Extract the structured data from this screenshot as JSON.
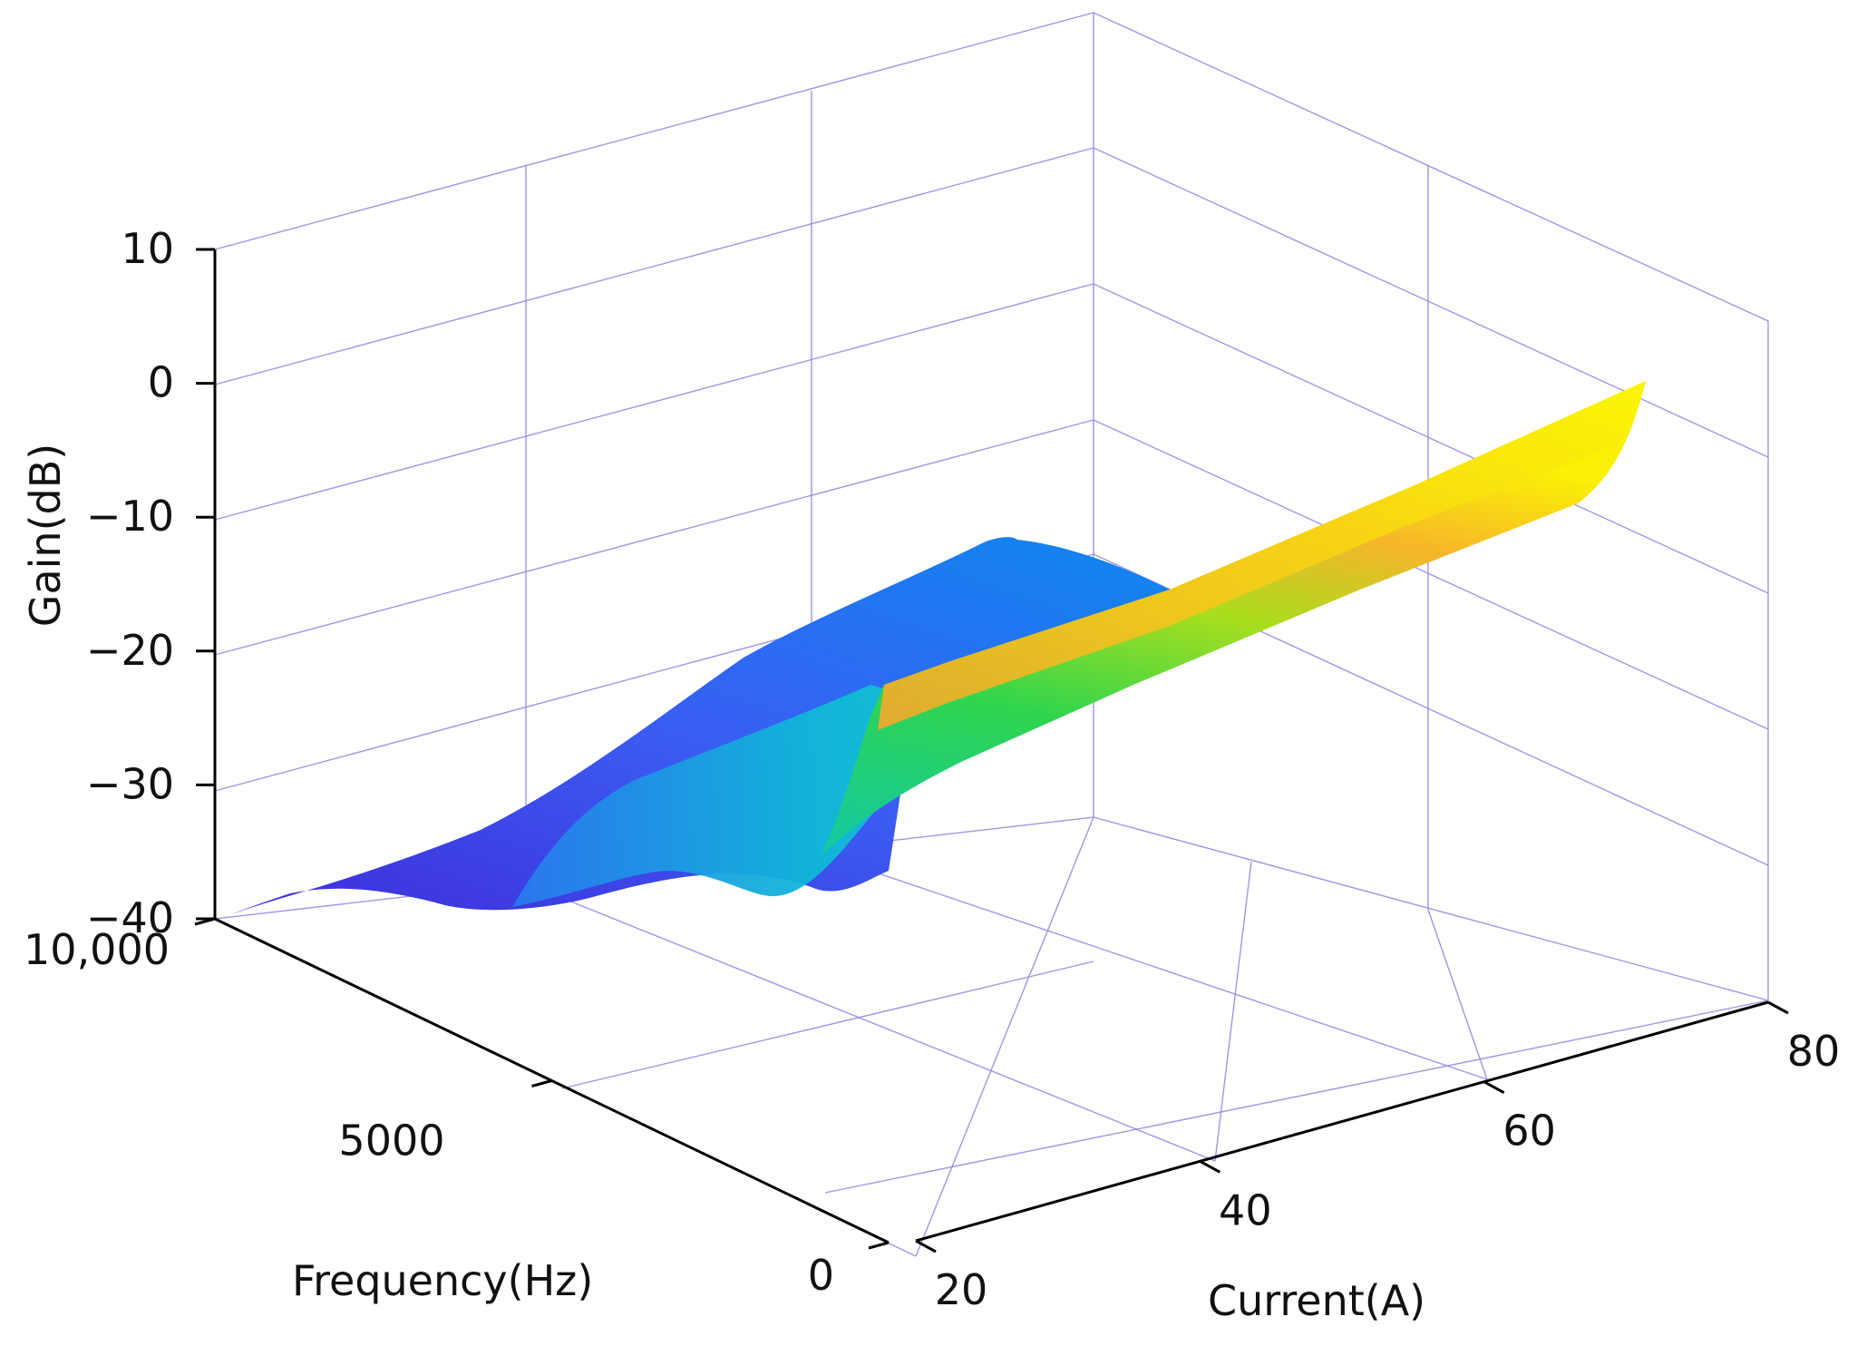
{
  "chart_data": {
    "type": "surface3d",
    "title": "",
    "zlabel": "Gain(dB)",
    "xlabel": "Current(A)",
    "ylabel": "Frequency(Hz)",
    "zlim": [
      -40,
      10
    ],
    "xlim": [
      20,
      80
    ],
    "ylim": [
      0,
      10000
    ],
    "z_ticks": [
      "10",
      "0",
      "−10",
      "−20",
      "−30",
      "−40"
    ],
    "x_ticks": [
      "20",
      "40",
      "60",
      "80"
    ],
    "y_ticks": [
      "0",
      "5000",
      "10,000"
    ],
    "z_tick_values": [
      10,
      0,
      -10,
      -20,
      -30,
      -40
    ],
    "x_tick_values": [
      20,
      40,
      60,
      80
    ],
    "y_tick_values": [
      0,
      5000,
      10000
    ],
    "grid": true,
    "colormap": [
      "#3f2bd9",
      "#0a6cf0",
      "#10b8d8",
      "#1ed38a",
      "#9fe01a",
      "#f7b025",
      "#fbf505"
    ],
    "surface": {
      "current": [
        20,
        30,
        40,
        50,
        60,
        70,
        80
      ],
      "frequency": [
        10000,
        7500,
        5000,
        2500,
        0
      ],
      "gain_db": [
        [
          -40,
          -40,
          -39,
          -37,
          -38,
          -39,
          -38
        ],
        [
          -34,
          -30,
          -28,
          -25,
          -23,
          -21,
          -19
        ],
        [
          -27,
          -23,
          -19,
          -14,
          -13,
          -11,
          -10
        ],
        [
          -22,
          -18,
          -14,
          -11,
          -8,
          -6,
          -2
        ],
        [
          -20,
          -16,
          -12,
          -9,
          -6,
          -3,
          0
        ]
      ]
    }
  }
}
